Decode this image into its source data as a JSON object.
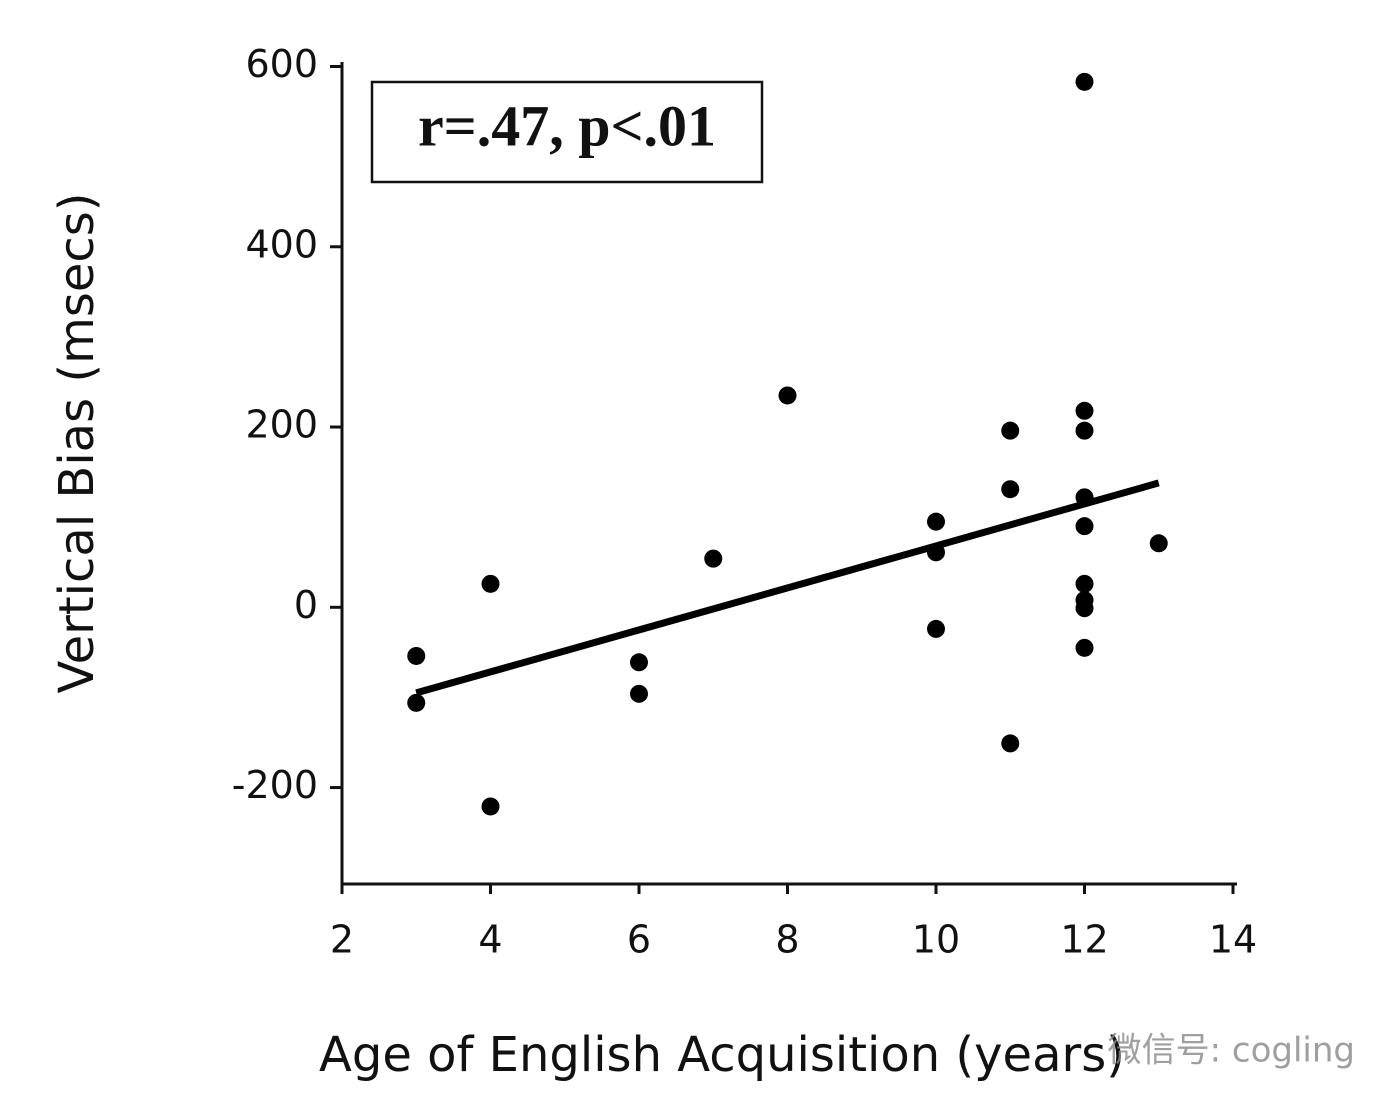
{
  "chart_data": {
    "type": "scatter",
    "x_label": "Age of English Acquisition (years)",
    "y_label": "Vertical Bias (msecs)",
    "annotation": "r=.47, p<.01",
    "watermark": "微信号: cogling",
    "x": [
      3,
      3,
      4,
      4,
      6,
      6,
      7,
      8,
      10,
      10,
      10,
      11,
      11,
      11,
      12,
      12,
      12,
      12,
      12,
      12,
      12,
      12,
      12,
      13
    ],
    "values": [
      -54,
      -106,
      26,
      -221,
      -61,
      -96,
      54,
      235,
      95,
      61,
      -24,
      196,
      131,
      -151,
      583,
      218,
      196,
      122,
      90,
      26,
      8,
      -1,
      -45,
      71
    ],
    "color": "#000000",
    "trendline": {
      "x": [
        3,
        13
      ],
      "values": [
        -95,
        138
      ]
    },
    "xlim": [
      2,
      14
    ],
    "xticks": [
      2,
      4,
      6,
      8,
      10,
      12,
      14
    ],
    "ylim": [
      -307,
      605
    ],
    "yticks": [
      -200,
      0,
      200,
      400,
      600
    ]
  }
}
